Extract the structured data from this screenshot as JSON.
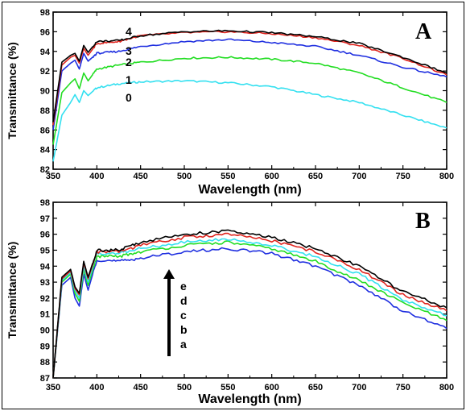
{
  "figure": {
    "panels": [
      "A",
      "B"
    ]
  },
  "chart_data": [
    {
      "panel": "A",
      "type": "line",
      "xlabel": "Wavelength (nm)",
      "ylabel": "Transmittance (%)",
      "xlim": [
        350,
        800
      ],
      "ylim": [
        82,
        98
      ],
      "xticks": [
        350,
        400,
        450,
        500,
        550,
        600,
        650,
        700,
        750,
        800
      ],
      "yticks": [
        82,
        84,
        86,
        88,
        90,
        92,
        94,
        96,
        98
      ],
      "x": [
        350,
        360,
        370,
        375,
        380,
        385,
        390,
        400,
        425,
        450,
        500,
        550,
        600,
        650,
        700,
        750,
        800
      ],
      "series": [
        {
          "name": "0",
          "color": "#33e0f0",
          "values": [
            82.8,
            87.5,
            88.8,
            89.6,
            88.8,
            90.0,
            89.5,
            90.3,
            90.7,
            90.9,
            91.0,
            90.8,
            90.4,
            89.6,
            88.8,
            87.5,
            86.2
          ]
        },
        {
          "name": "1",
          "color": "#22dd22",
          "values": [
            84.5,
            89.8,
            90.8,
            91.2,
            90.2,
            91.8,
            91.0,
            92.2,
            92.6,
            92.9,
            93.3,
            93.4,
            93.2,
            92.8,
            91.8,
            90.3,
            88.8
          ]
        },
        {
          "name": "2",
          "color": "#1f2fe0",
          "values": [
            86.0,
            92.0,
            92.8,
            93.1,
            92.2,
            93.8,
            93.0,
            93.8,
            94.0,
            94.5,
            95.0,
            95.2,
            94.9,
            94.5,
            93.6,
            92.4,
            91.4
          ]
        },
        {
          "name": "3",
          "color": "#e0251f",
          "values": [
            86.5,
            92.6,
            93.4,
            93.6,
            92.8,
            94.3,
            93.6,
            94.8,
            95.0,
            95.6,
            95.9,
            96.0,
            95.8,
            95.4,
            94.6,
            93.3,
            91.6
          ]
        },
        {
          "name": "4",
          "color": "#000000",
          "values": [
            86.8,
            92.9,
            93.6,
            93.8,
            93.0,
            94.6,
            93.9,
            95.0,
            95.1,
            95.6,
            96.0,
            96.1,
            95.9,
            95.5,
            94.8,
            93.4,
            91.8
          ]
        }
      ]
    },
    {
      "panel": "B",
      "type": "line",
      "xlabel": "Wavelength (nm)",
      "ylabel": "Transmittance (%)",
      "xlim": [
        350,
        800
      ],
      "ylim": [
        87,
        98
      ],
      "xticks": [
        350,
        400,
        450,
        500,
        550,
        600,
        650,
        700,
        750,
        800
      ],
      "yticks": [
        87,
        88,
        89,
        90,
        91,
        92,
        93,
        94,
        95,
        96,
        97,
        98
      ],
      "x": [
        350,
        360,
        370,
        375,
        380,
        385,
        390,
        400,
        425,
        450,
        500,
        550,
        600,
        650,
        700,
        750,
        800
      ],
      "series": [
        {
          "name": "a",
          "color": "#1f2fe0",
          "values": [
            87.0,
            92.8,
            93.3,
            92.0,
            91.5,
            93.5,
            92.5,
            94.4,
            94.3,
            94.5,
            94.9,
            95.1,
            94.8,
            94.0,
            92.8,
            91.2,
            90.1
          ]
        },
        {
          "name": "b",
          "color": "#22dd22",
          "values": [
            87.0,
            93.0,
            93.5,
            92.3,
            91.8,
            93.8,
            92.8,
            94.6,
            94.6,
            94.9,
            95.3,
            95.5,
            95.1,
            94.3,
            93.1,
            91.7,
            90.6
          ]
        },
        {
          "name": "c",
          "color": "#33e0f0",
          "values": [
            87.0,
            93.1,
            93.6,
            92.5,
            92.0,
            94.0,
            93.0,
            94.8,
            94.8,
            95.1,
            95.5,
            95.7,
            95.3,
            94.6,
            93.5,
            91.9,
            90.9
          ]
        },
        {
          "name": "d",
          "color": "#e0251f",
          "values": [
            87.0,
            93.2,
            93.7,
            92.6,
            92.2,
            94.2,
            93.2,
            94.9,
            94.9,
            95.3,
            95.8,
            96.0,
            95.6,
            94.9,
            93.8,
            92.2,
            91.2
          ]
        },
        {
          "name": "e",
          "color": "#000000",
          "values": [
            87.0,
            93.3,
            93.8,
            92.7,
            92.3,
            94.3,
            93.3,
            95.0,
            95.0,
            95.5,
            96.0,
            96.2,
            95.8,
            95.1,
            94.0,
            92.4,
            91.4
          ]
        }
      ],
      "annotation": {
        "arrow_direction": "up",
        "labels": [
          "e",
          "d",
          "c",
          "b",
          "a"
        ]
      }
    }
  ]
}
